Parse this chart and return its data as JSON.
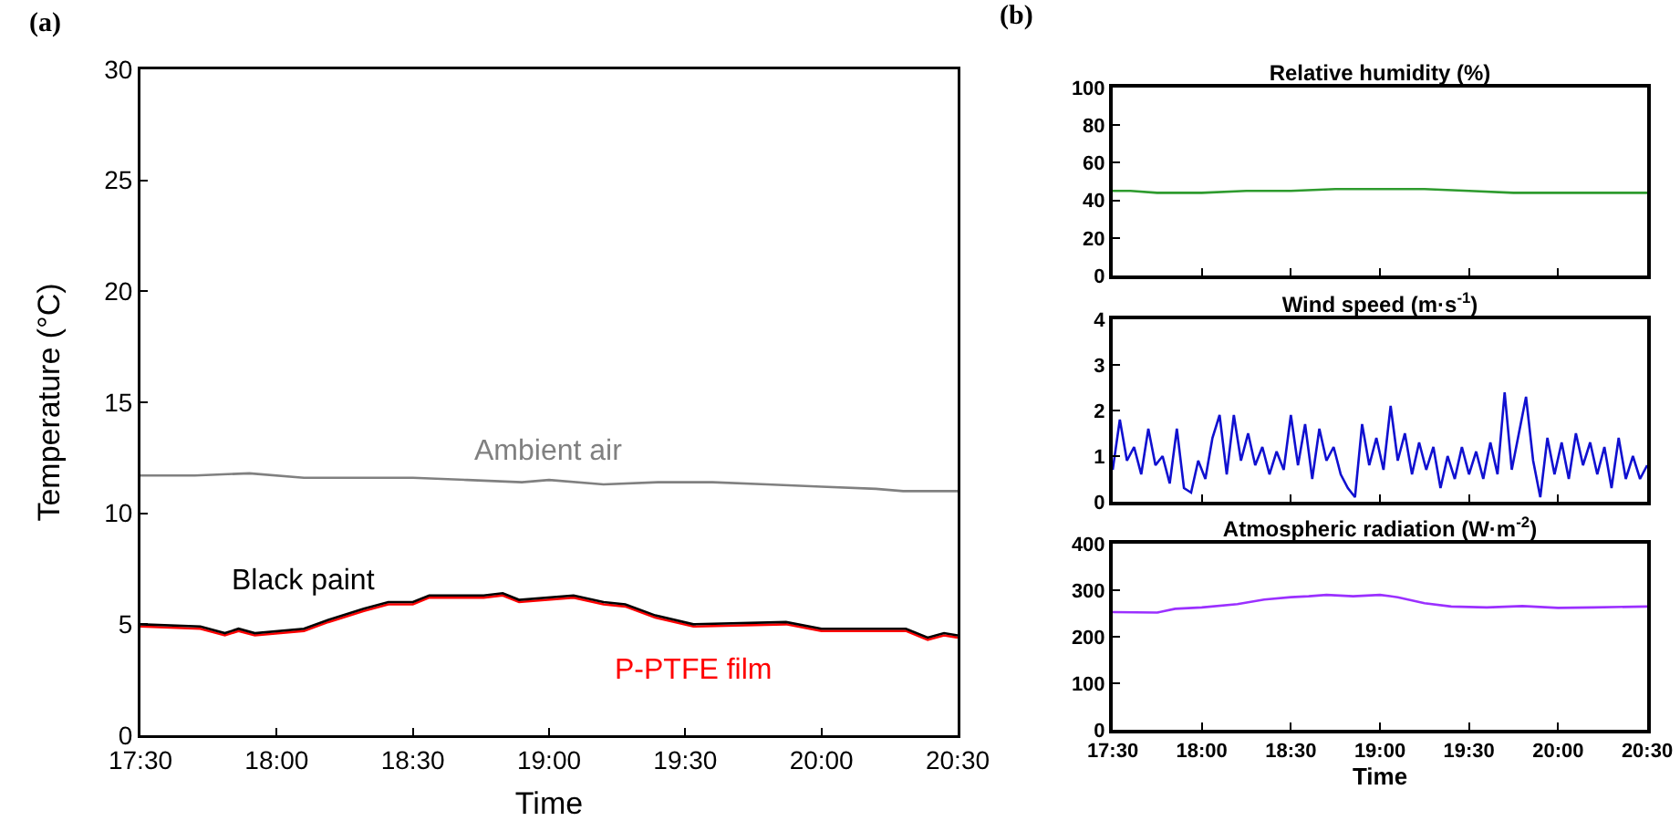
{
  "chart_data": [
    {
      "type": "line",
      "xlabel": "Time",
      "ylabel": "Temperature (°C)",
      "annotations": [
        "(a)"
      ],
      "xlim": [
        17.5,
        20.5
      ],
      "xticks": [
        {
          "value": 17.5,
          "label": "17:30"
        },
        {
          "value": 18,
          "label": "18:00"
        },
        {
          "value": 18.5,
          "label": "18:30"
        },
        {
          "value": 19,
          "label": "19:00"
        },
        {
          "value": 19.5,
          "label": "19:30"
        },
        {
          "value": 20,
          "label": "20:00"
        },
        {
          "value": 20.5,
          "label": "20:30"
        }
      ],
      "ylim": [
        0,
        30
      ],
      "yticks": [
        0,
        5,
        10,
        15,
        20,
        25,
        30
      ],
      "grid": false,
      "series": [
        {
          "name": "Ambient air",
          "color": "#808080",
          "x": [
            17.5,
            17.7,
            17.9,
            18.1,
            18.3,
            18.5,
            18.7,
            18.9,
            19.0,
            19.2,
            19.4,
            19.6,
            19.8,
            20.0,
            20.2,
            20.3,
            20.5
          ],
          "values": [
            11.7,
            11.7,
            11.8,
            11.6,
            11.6,
            11.6,
            11.5,
            11.4,
            11.5,
            11.3,
            11.4,
            11.4,
            11.3,
            11.2,
            11.1,
            11.0,
            11.0
          ]
        },
        {
          "name": "P-PTFE film",
          "color": "#ff0000",
          "x": [
            17.5,
            17.72,
            17.81,
            17.86,
            17.92,
            18.1,
            18.19,
            18.32,
            18.41,
            18.5,
            18.56,
            18.76,
            18.83,
            18.89,
            19.09,
            19.2,
            19.28,
            19.39,
            19.53,
            19.87,
            20.0,
            20.31,
            20.39,
            20.45,
            20.5
          ],
          "values": [
            4.9,
            4.8,
            4.5,
            4.7,
            4.5,
            4.7,
            5.1,
            5.6,
            5.9,
            5.9,
            6.2,
            6.2,
            6.3,
            6.0,
            6.2,
            5.9,
            5.8,
            5.3,
            4.9,
            5.0,
            4.7,
            4.7,
            4.3,
            4.5,
            4.4
          ]
        },
        {
          "name": "Black paint",
          "color": "#000000",
          "x": [
            17.5,
            17.72,
            17.81,
            17.86,
            17.92,
            18.1,
            18.19,
            18.32,
            18.41,
            18.5,
            18.56,
            18.76,
            18.83,
            18.89,
            19.09,
            19.2,
            19.28,
            19.39,
            19.53,
            19.87,
            20.0,
            20.31,
            20.39,
            20.45,
            20.5
          ],
          "values": [
            5.0,
            4.9,
            4.6,
            4.8,
            4.6,
            4.8,
            5.2,
            5.7,
            6.0,
            6.0,
            6.3,
            6.3,
            6.4,
            6.1,
            6.3,
            6.0,
            5.9,
            5.4,
            5.0,
            5.1,
            4.8,
            4.8,
            4.4,
            4.6,
            4.5
          ]
        }
      ]
    },
    {
      "type": "line",
      "title": "Relative humidity (%)",
      "annotations": [
        "(b)"
      ],
      "tick_labels": "y",
      "xlim": [
        17.5,
        20.5
      ],
      "xticks": [
        {
          "value": 17.5,
          "label": null
        },
        {
          "value": 18,
          "label": null
        },
        {
          "value": 18.5,
          "label": null
        },
        {
          "value": 19,
          "label": null
        },
        {
          "value": 19.5,
          "label": null
        },
        {
          "value": 20,
          "label": null
        },
        {
          "value": 20.5,
          "label": null
        }
      ],
      "ylim": [
        0,
        100
      ],
      "yticks": [
        0,
        20,
        40,
        60,
        80,
        100
      ],
      "grid": false,
      "series": [
        {
          "color": "#2e9b2e",
          "x": [
            17.5,
            17.6,
            17.75,
            18.0,
            18.25,
            18.5,
            18.75,
            19.0,
            19.25,
            19.5,
            19.75,
            20.0,
            20.25,
            20.5
          ],
          "values": [
            45,
            45,
            44,
            44,
            45,
            45,
            46,
            46,
            46,
            45,
            44,
            44,
            44,
            44
          ]
        }
      ]
    },
    {
      "type": "line",
      "title": "Wind speed (m·s$^{-1}$)",
      "tick_labels": "y",
      "xlim": [
        17.5,
        20.5
      ],
      "xticks": [
        {
          "value": 17.5,
          "label": null
        },
        {
          "value": 18,
          "label": null
        },
        {
          "value": 18.5,
          "label": null
        },
        {
          "value": 19,
          "label": null
        },
        {
          "value": 19.5,
          "label": null
        },
        {
          "value": 20,
          "label": null
        },
        {
          "value": 20.5,
          "label": null
        }
      ],
      "ylim": [
        0,
        4
      ],
      "yticks": [
        0,
        1,
        2,
        3,
        4
      ],
      "grid": false,
      "series": [
        {
          "color": "#1010d0",
          "x": [
            17.5,
            17.54,
            17.58,
            17.62,
            17.66,
            17.7,
            17.74,
            17.78,
            17.82,
            17.86,
            17.9,
            17.94,
            17.98,
            18.02,
            18.06,
            18.1,
            18.14,
            18.18,
            18.22,
            18.26,
            18.3,
            18.34,
            18.38,
            18.42,
            18.46,
            18.5,
            18.54,
            18.58,
            18.62,
            18.66,
            18.7,
            18.74,
            18.78,
            18.82,
            18.86,
            18.9,
            18.94,
            18.98,
            19.02,
            19.06,
            19.1,
            19.14,
            19.18,
            19.22,
            19.26,
            19.3,
            19.34,
            19.38,
            19.42,
            19.46,
            19.5,
            19.54,
            19.58,
            19.62,
            19.66,
            19.7,
            19.74,
            19.78,
            19.82,
            19.86,
            19.9,
            19.94,
            19.98,
            20.02,
            20.06,
            20.1,
            20.14,
            20.18,
            20.22,
            20.26,
            20.3,
            20.34,
            20.38,
            20.42,
            20.46,
            20.5
          ],
          "values": [
            0.7,
            1.8,
            0.9,
            1.2,
            0.6,
            1.6,
            0.8,
            1.0,
            0.4,
            1.6,
            0.3,
            0.2,
            0.9,
            0.5,
            1.4,
            1.9,
            0.6,
            1.9,
            0.9,
            1.5,
            0.8,
            1.2,
            0.6,
            1.1,
            0.7,
            1.9,
            0.8,
            1.7,
            0.5,
            1.6,
            0.9,
            1.2,
            0.6,
            0.3,
            0.1,
            1.7,
            0.8,
            1.4,
            0.7,
            2.1,
            0.9,
            1.5,
            0.6,
            1.3,
            0.7,
            1.2,
            0.3,
            1.0,
            0.5,
            1.2,
            0.6,
            1.1,
            0.5,
            1.3,
            0.6,
            2.4,
            0.7,
            1.5,
            2.3,
            0.9,
            0.1,
            1.4,
            0.6,
            1.3,
            0.5,
            1.5,
            0.8,
            1.3,
            0.6,
            1.2,
            0.3,
            1.4,
            0.5,
            1.0,
            0.5,
            0.8
          ]
        }
      ]
    },
    {
      "type": "line",
      "title": "Atmospheric radiation (W·m$^{-2}$)",
      "xlabel": "Time",
      "xlim": [
        17.5,
        20.5
      ],
      "xticks": [
        {
          "value": 17.5,
          "label": "17:30"
        },
        {
          "value": 18,
          "label": "18:00"
        },
        {
          "value": 18.5,
          "label": "18:30"
        },
        {
          "value": 19,
          "label": "19:00"
        },
        {
          "value": 19.5,
          "label": "19:30"
        },
        {
          "value": 20,
          "label": "20:00"
        },
        {
          "value": 20.5,
          "label": "20:30"
        }
      ],
      "ylim": [
        0,
        400
      ],
      "yticks": [
        0,
        100,
        200,
        300,
        400
      ],
      "grid": false,
      "series": [
        {
          "color": "#9b30ff",
          "x": [
            17.5,
            17.75,
            17.85,
            18.0,
            18.2,
            18.35,
            18.5,
            18.6,
            18.7,
            18.85,
            19.0,
            19.1,
            19.25,
            19.4,
            19.6,
            19.8,
            20.0,
            20.2,
            20.5
          ],
          "values": [
            253,
            252,
            260,
            263,
            270,
            280,
            285,
            287,
            290,
            287,
            290,
            285,
            272,
            265,
            263,
            266,
            262,
            263,
            265
          ]
        }
      ]
    }
  ]
}
